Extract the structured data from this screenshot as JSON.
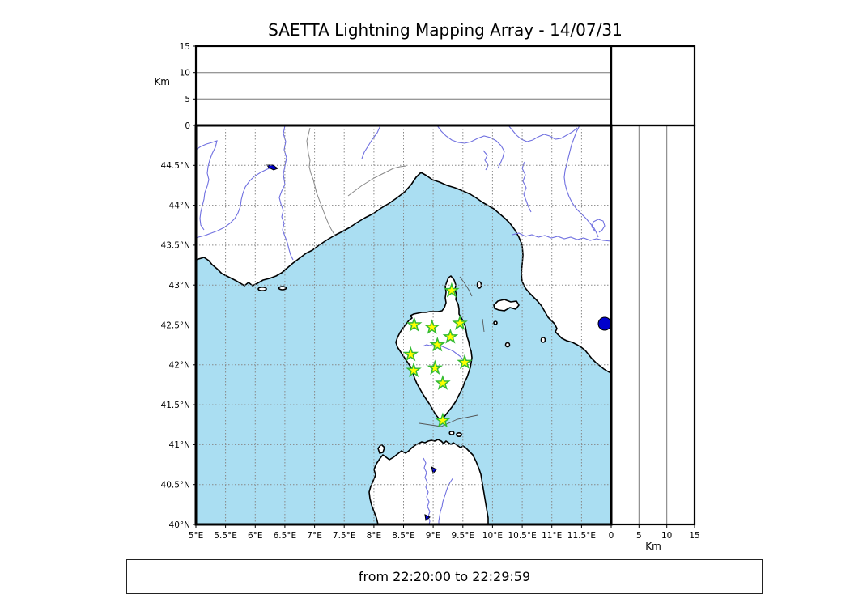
{
  "title": "SAETTA Lightning Mapping Array - 14/07/31",
  "caption": "from 22:20:00 to 22:29:59",
  "colors": {
    "sea": "#aadef2",
    "land": "#ffffff",
    "coastline": "#000000",
    "river": "#7070e0",
    "lake": "#0000cc",
    "grid": "#888888",
    "country_border": "#888888",
    "maritime_boundary": "#555555",
    "station_fill": "#ffff00",
    "station_stroke": "#33bb33",
    "frame": "#000000"
  },
  "map_axes": {
    "lon_min": 5,
    "lon_max": 12,
    "lat_min": 40,
    "lat_max": 45,
    "lon_ticks": [
      {
        "value": 5,
        "label": "5°E"
      },
      {
        "value": 5.5,
        "label": "5.5°E"
      },
      {
        "value": 6,
        "label": "6°E"
      },
      {
        "value": 6.5,
        "label": "6.5°E"
      },
      {
        "value": 7,
        "label": "7°E"
      },
      {
        "value": 7.5,
        "label": "7.5°E"
      },
      {
        "value": 8,
        "label": "8°E"
      },
      {
        "value": 8.5,
        "label": "8.5°E"
      },
      {
        "value": 9,
        "label": "9°E"
      },
      {
        "value": 9.5,
        "label": "9.5°E"
      },
      {
        "value": 10,
        "label": "10°E"
      },
      {
        "value": 10.5,
        "label": "10.5°E"
      },
      {
        "value": 11,
        "label": "11°E"
      },
      {
        "value": 11.5,
        "label": "11.5°E"
      }
    ],
    "lat_ticks": [
      {
        "value": 40,
        "label": "40°N"
      },
      {
        "value": 40.5,
        "label": "40.5°N"
      },
      {
        "value": 41,
        "label": "41°N"
      },
      {
        "value": 41.5,
        "label": "41.5°N"
      },
      {
        "value": 42,
        "label": "42°N"
      },
      {
        "value": 42.5,
        "label": "42.5°N"
      },
      {
        "value": 43,
        "label": "43°N"
      },
      {
        "value": 43.5,
        "label": "43.5°N"
      },
      {
        "value": 44,
        "label": "44°N"
      },
      {
        "value": 44.5,
        "label": "44.5°N"
      }
    ]
  },
  "altitude_axes": {
    "unit_label": "Km",
    "min": 0,
    "max": 15,
    "ticks": [
      {
        "value": 0,
        "label": "0"
      },
      {
        "value": 5,
        "label": "5"
      },
      {
        "value": 10,
        "label": "10"
      },
      {
        "value": 15,
        "label": "15"
      }
    ],
    "grid_values": [
      5,
      10
    ]
  },
  "stations": [
    {
      "lon": 9.31,
      "lat": 42.93
    },
    {
      "lon": 8.68,
      "lat": 42.5
    },
    {
      "lon": 8.98,
      "lat": 42.47
    },
    {
      "lon": 9.45,
      "lat": 42.52
    },
    {
      "lon": 9.29,
      "lat": 42.35
    },
    {
      "lon": 9.07,
      "lat": 42.25
    },
    {
      "lon": 8.62,
      "lat": 42.13
    },
    {
      "lon": 9.53,
      "lat": 42.03
    },
    {
      "lon": 9.03,
      "lat": 41.96
    },
    {
      "lon": 8.67,
      "lat": 41.93
    },
    {
      "lon": 9.16,
      "lat": 41.77
    },
    {
      "lon": 9.16,
      "lat": 41.3
    }
  ]
}
